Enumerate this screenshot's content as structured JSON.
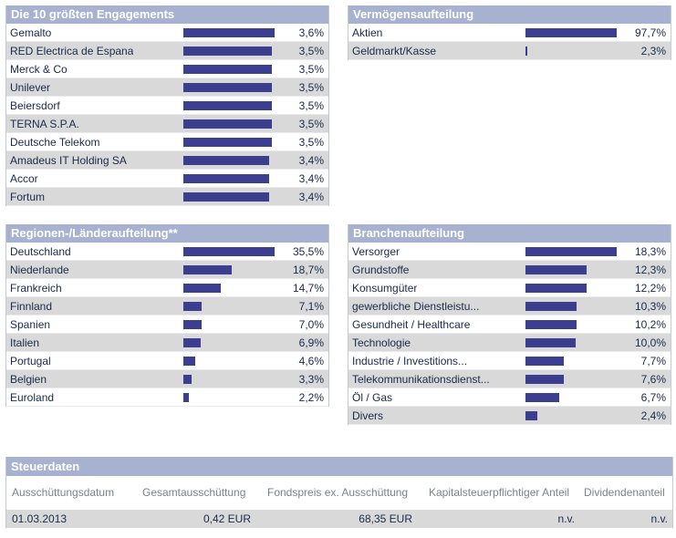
{
  "top10": {
    "title": "Die 10 größten Engagements",
    "items": [
      {
        "label": "Gemalto",
        "value": "3,6%",
        "pct": 3.6
      },
      {
        "label": "RED Electrica de Espana",
        "value": "3,5%",
        "pct": 3.5
      },
      {
        "label": "Merck & Co",
        "value": "3,5%",
        "pct": 3.5
      },
      {
        "label": "Unilever",
        "value": "3,5%",
        "pct": 3.5
      },
      {
        "label": "Beiersdorf",
        "value": "3,5%",
        "pct": 3.5
      },
      {
        "label": "TERNA S.P.A.",
        "value": "3,5%",
        "pct": 3.5
      },
      {
        "label": "Deutsche Telekom",
        "value": "3,5%",
        "pct": 3.5
      },
      {
        "label": "Amadeus IT Holding SA",
        "value": "3,4%",
        "pct": 3.4
      },
      {
        "label": "Accor",
        "value": "3,4%",
        "pct": 3.4
      },
      {
        "label": "Fortum",
        "value": "3,4%",
        "pct": 3.4
      }
    ]
  },
  "assets": {
    "title": "Vermögensaufteilung",
    "items": [
      {
        "label": "Aktien",
        "value": "97,7%",
        "pct": 97.7
      },
      {
        "label": "Geldmarkt/Kasse",
        "value": "2,3%",
        "pct": 2.3
      }
    ]
  },
  "regions": {
    "title": "Regionen-/Länderaufteilung**",
    "items": [
      {
        "label": "Deutschland",
        "value": "35,5%",
        "pct": 35.5
      },
      {
        "label": "Niederlande",
        "value": "18,7%",
        "pct": 18.7
      },
      {
        "label": "Frankreich",
        "value": "14,7%",
        "pct": 14.7
      },
      {
        "label": "Finnland",
        "value": "7,1%",
        "pct": 7.1
      },
      {
        "label": "Spanien",
        "value": "7,0%",
        "pct": 7.0
      },
      {
        "label": "Italien",
        "value": "6,9%",
        "pct": 6.9
      },
      {
        "label": "Portugal",
        "value": "4,6%",
        "pct": 4.6
      },
      {
        "label": "Belgien",
        "value": "3,3%",
        "pct": 3.3
      },
      {
        "label": "Euroland",
        "value": "2,2%",
        "pct": 2.2
      }
    ]
  },
  "sectors": {
    "title": "Branchenaufteilung",
    "items": [
      {
        "label": "Versorger",
        "value": "18,3%",
        "pct": 18.3
      },
      {
        "label": "Grundstoffe",
        "value": "12,3%",
        "pct": 12.3
      },
      {
        "label": "Konsumgüter",
        "value": "12,2%",
        "pct": 12.2
      },
      {
        "label": "gewerbliche Dienstleistu...",
        "value": "10,3%",
        "pct": 10.3
      },
      {
        "label": "Gesundheit / Healthcare",
        "value": "10,2%",
        "pct": 10.2
      },
      {
        "label": "Technologie",
        "value": "10,0%",
        "pct": 10.0
      },
      {
        "label": "Industrie / Investitions...",
        "value": "7,7%",
        "pct": 7.7
      },
      {
        "label": "Telekommunikationsdienst...",
        "value": "7,6%",
        "pct": 7.6
      },
      {
        "label": "Öl / Gas",
        "value": "6,7%",
        "pct": 6.7
      },
      {
        "label": "Divers",
        "value": "2,4%",
        "pct": 2.4
      }
    ]
  },
  "tax": {
    "title": "Steuerdaten",
    "headers": {
      "date": "Ausschüttungsdatum",
      "total": "Gesamtausschüttung",
      "price": "Fondspreis ex. Ausschüttung",
      "kap": "Kapitalsteuerpflichtiger Anteil",
      "div": "Dividendenanteil"
    },
    "row": {
      "date": "01.03.2013",
      "total": "0,42 EUR",
      "price": "68,35 EUR",
      "kap": "n.v.",
      "div": "n.v."
    }
  },
  "colors": {
    "bar": "#3c3f8f",
    "header": "#a6b2cf",
    "row_alt": "#d9d9d9"
  }
}
